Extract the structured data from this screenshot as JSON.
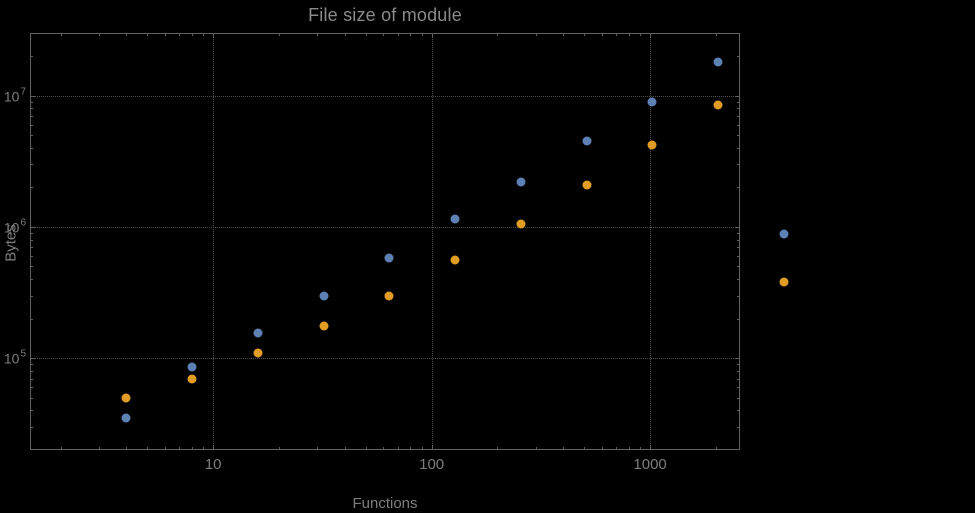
{
  "title": "File size of module",
  "colors": {
    "background": "#000000",
    "text": "#7d7d7d",
    "grid": "#4f4f4f",
    "frame": "#616161",
    "series_blue": "#5e81b5",
    "series_orange": "#e19c24"
  },
  "chart_data": {
    "type": "scatter",
    "title": "File size of module",
    "xlabel": "Functions",
    "ylabel": "Bytes",
    "x_scale": "log",
    "y_scale": "log",
    "grid": true,
    "legend": "none",
    "xlim": [
      1.45,
      2580
    ],
    "ylim": [
      20000,
      30000000
    ],
    "x": [
      4,
      8,
      16,
      32,
      64,
      128,
      256,
      512,
      1024,
      2048,
      4096
    ],
    "series": [
      {
        "name": "blue",
        "color": "#5e81b5",
        "values": [
          35000,
          85000,
          155000,
          300000,
          580000,
          1150000,
          2200000,
          4500000,
          9000000,
          18000000,
          880000
        ]
      },
      {
        "name": "orange",
        "color": "#e19c24",
        "values": [
          50000,
          70000,
          110000,
          175000,
          300000,
          560000,
          1050000,
          2100000,
          4200000,
          8500000,
          380000
        ]
      }
    ],
    "x_ticks": [
      {
        "value": 10,
        "label": "10"
      },
      {
        "value": 100,
        "label": "100"
      },
      {
        "value": 1000,
        "label": "1000"
      }
    ],
    "y_ticks": [
      {
        "value": 100000,
        "base": "10",
        "exp": "5"
      },
      {
        "value": 1000000,
        "base": "10",
        "exp": "6"
      },
      {
        "value": 10000000,
        "base": "10",
        "exp": "7"
      }
    ]
  }
}
